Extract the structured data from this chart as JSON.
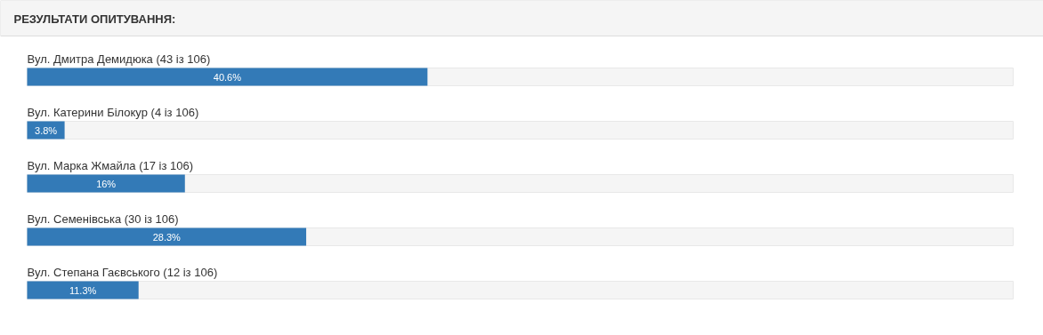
{
  "chart_data": {
    "type": "bar",
    "orientation": "horizontal",
    "title": "РЕЗУЛЬТАТИ ОПИТУВАННЯ:",
    "categories": [
      "Вул. Дмитра Демидюка (43 із 106)",
      "Вул. Катерини Білокур (4 із 106)",
      "Вул. Марка Жмайла (17 із 106)",
      "Вул. Семенівська (30 із 106)",
      "Вул. Степана Гаєвського (12 із 106)"
    ],
    "values": [
      40.6,
      3.8,
      16,
      28.3,
      11.3
    ],
    "value_labels": [
      "40.6%",
      "3.8%",
      "16%",
      "28.3%",
      "11.3%"
    ],
    "color": "#337ab7",
    "xlim": [
      0,
      100
    ],
    "tick_labels": false,
    "grid": false
  }
}
